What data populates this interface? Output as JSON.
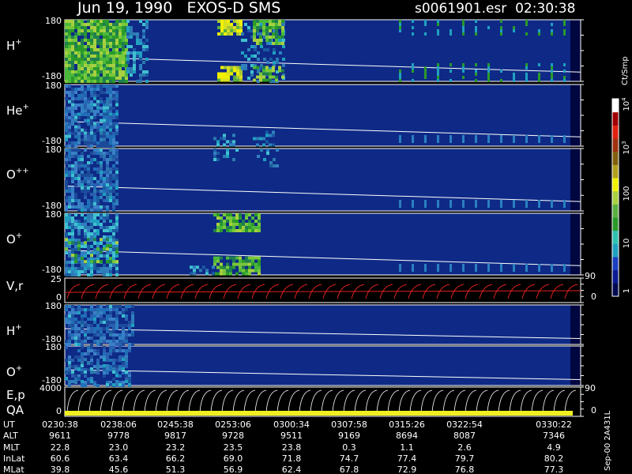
{
  "header": {
    "title": "Jun 19, 1990   EXOS-D SMS",
    "file": "s0061901.esr  02:30:38"
  },
  "panels": [
    {
      "label": "H",
      "sup": "+",
      "ticks": [
        "180",
        "-180"
      ]
    },
    {
      "label": "He",
      "sup": "+",
      "ticks": [
        "180",
        "-180"
      ]
    },
    {
      "label": "O",
      "sup": "++",
      "ticks": [
        "180",
        "-180"
      ]
    },
    {
      "label": "O",
      "sup": "+",
      "ticks": [
        "180",
        "-180"
      ]
    },
    {
      "label": "V,r",
      "ticks": [
        "25",
        "0"
      ],
      "right_ticks": [
        "90",
        "0"
      ]
    },
    {
      "label": "H",
      "sup": "+",
      "ticks": [
        "180",
        "-180"
      ]
    },
    {
      "label": "O",
      "sup": "+",
      "ticks": [
        "180",
        "-180"
      ]
    },
    {
      "label": "E,p",
      "label2": "QA",
      "ticks": [
        "4000",
        "0"
      ],
      "right_ticks": [
        "90",
        "0"
      ]
    }
  ],
  "colorbar": {
    "unit": "Ct/Smp",
    "labels": [
      {
        "base": "10",
        "exp": "4"
      },
      {
        "base": "10",
        "exp": "3"
      },
      "100",
      "10",
      "1"
    ]
  },
  "table": {
    "rows": [
      [
        "UT",
        "0230:38",
        "0238:06",
        "0245:38",
        "0253:06",
        "0300:34",
        "0307:58",
        "0315:26",
        "0322:54",
        "0330:22"
      ],
      [
        "ALT",
        "9611",
        "9778",
        "9817",
        "9728",
        "9511",
        "9169",
        "8694",
        "8087",
        "7346"
      ],
      [
        "MLT",
        "22.8",
        "23.0",
        "23.2",
        "23.5",
        "23.8",
        "0.3",
        "1.1",
        "2.6",
        "4.9"
      ],
      [
        "InLat",
        "60.6",
        "63.4",
        "66.2",
        "69.0",
        "71.8",
        "74.7",
        "77.4",
        "79.7",
        "80.2"
      ],
      [
        "MLat",
        "39.8",
        "45.6",
        "51.3",
        "56.9",
        "62.4",
        "67.8",
        "72.9",
        "76.8",
        "77.3"
      ]
    ]
  },
  "footer": "Sep-00  2A431L"
}
